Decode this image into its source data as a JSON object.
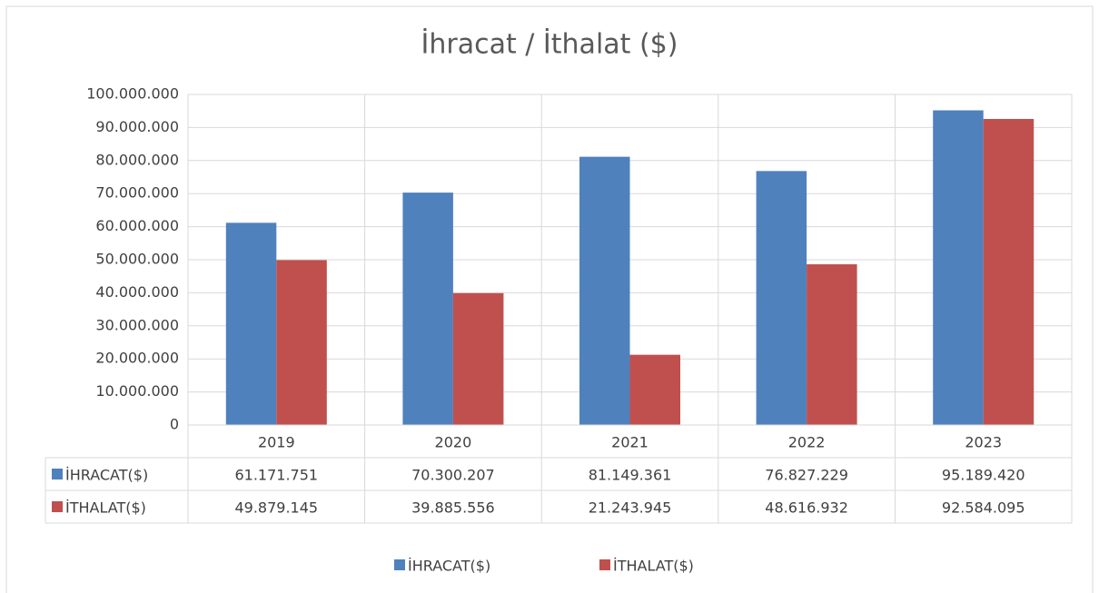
{
  "chart_data": {
    "type": "bar",
    "title": "İhracat / İthalat ($)",
    "categories": [
      "2019",
      "2020",
      "2021",
      "2022",
      "2023"
    ],
    "series": [
      {
        "name": "İHRACAT($)",
        "color": "#4f81bd",
        "values": [
          61171751,
          70300207,
          81149361,
          76827229,
          95189420
        ],
        "value_labels": [
          "61.171.751",
          "70.300.207",
          "81.149.361",
          "76.827.229",
          "95.189.420"
        ]
      },
      {
        "name": "İTHALAT($)",
        "color": "#c0504d",
        "values": [
          49879145,
          39885556,
          21243945,
          48616932,
          92584095
        ],
        "value_labels": [
          "49.879.145",
          "39.885.556",
          "21.243.945",
          "48.616.932",
          "92.584.095"
        ]
      }
    ],
    "ylim": [
      0,
      100000000
    ],
    "yticks": [
      0,
      {
        "value": 10000000,
        "label": "10.000.000"
      },
      {
        "value": 20000000,
        "label": "20.000.000"
      },
      {
        "value": 30000000,
        "label": "30.000.000"
      },
      {
        "value": 40000000,
        "label": "40.000.000"
      },
      {
        "value": 50000000,
        "label": "50.000.000"
      },
      {
        "value": 60000000,
        "label": "60.000.000"
      },
      {
        "value": 70000000,
        "label": "70.000.000"
      },
      {
        "value": 80000000,
        "label": "80.000.000"
      },
      {
        "value": 90000000,
        "label": "90.000.000"
      },
      {
        "value": 100000000,
        "label": "100.000.000"
      }
    ],
    "grid": true,
    "legend": "bottom"
  }
}
